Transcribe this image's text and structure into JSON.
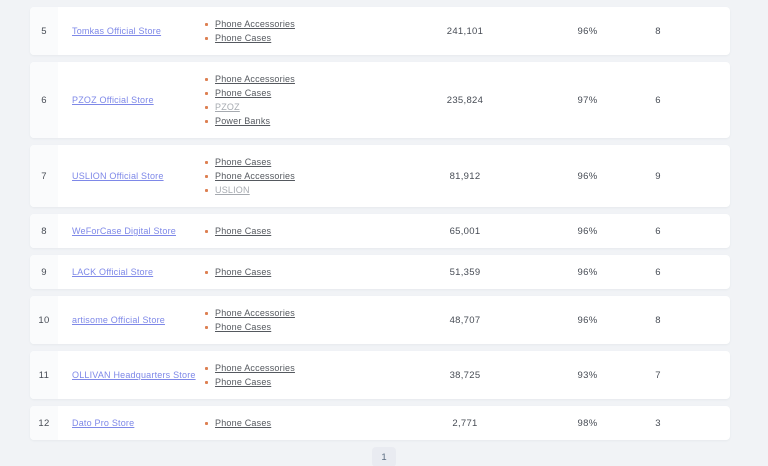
{
  "table": {
    "rows": [
      {
        "rank": "5",
        "store": "Tomkas Official Store",
        "categories": [
          {
            "label": "Phone Accessories",
            "muted": false
          },
          {
            "label": "Phone Cases",
            "muted": false
          }
        ],
        "reviews": "241,101",
        "rating": "96%",
        "products": "8"
      },
      {
        "rank": "6",
        "store": "PZOZ Official Store",
        "categories": [
          {
            "label": "Phone Accessories",
            "muted": false
          },
          {
            "label": "Phone Cases",
            "muted": false
          },
          {
            "label": "PZOZ",
            "muted": true
          },
          {
            "label": "Power Banks",
            "muted": false
          }
        ],
        "reviews": "235,824",
        "rating": "97%",
        "products": "6"
      },
      {
        "rank": "7",
        "store": "USLION Official Store",
        "categories": [
          {
            "label": "Phone Cases",
            "muted": false
          },
          {
            "label": "Phone Accessories",
            "muted": false
          },
          {
            "label": "USLION",
            "muted": true
          }
        ],
        "reviews": "81,912",
        "rating": "96%",
        "products": "9"
      },
      {
        "rank": "8",
        "store": "WeForCase Digital Store",
        "categories": [
          {
            "label": "Phone Cases",
            "muted": false
          }
        ],
        "reviews": "65,001",
        "rating": "96%",
        "products": "6"
      },
      {
        "rank": "9",
        "store": "LACK Official Store",
        "categories": [
          {
            "label": "Phone Cases",
            "muted": false
          }
        ],
        "reviews": "51,359",
        "rating": "96%",
        "products": "6"
      },
      {
        "rank": "10",
        "store": "artisome Official Store",
        "categories": [
          {
            "label": "Phone Accessories",
            "muted": false
          },
          {
            "label": "Phone Cases",
            "muted": false
          }
        ],
        "reviews": "48,707",
        "rating": "96%",
        "products": "8"
      },
      {
        "rank": "11",
        "store": "OLLIVAN Headquarters Store",
        "categories": [
          {
            "label": "Phone Accessories",
            "muted": false
          },
          {
            "label": "Phone Cases",
            "muted": false
          }
        ],
        "reviews": "38,725",
        "rating": "93%",
        "products": "7"
      },
      {
        "rank": "12",
        "store": "Dato Pro Store",
        "categories": [
          {
            "label": "Phone Cases",
            "muted": false
          }
        ],
        "reviews": "2,771",
        "rating": "98%",
        "products": "3"
      }
    ]
  },
  "pagination": {
    "current_page": "1"
  },
  "colors": {
    "page_bg": "#f1f3f6",
    "card_bg": "#ffffff",
    "store_link": "#7e88e8",
    "category_link": "#55595f",
    "muted_link": "#a6aab0",
    "bullet": "#dd8052",
    "value_text": "#474c55",
    "pagination_bg": "#e9ebf1"
  }
}
